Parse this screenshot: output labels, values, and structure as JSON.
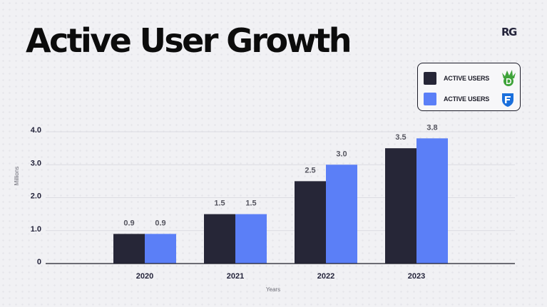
{
  "header": {
    "title": "Active User Growth",
    "brand": "RG"
  },
  "legend": [
    {
      "label": "ACTIVE USERS",
      "color": "#262637",
      "logo": "draftkings-crown-logo"
    },
    {
      "label": "ACTIVE USERS",
      "color": "#5b7ff7",
      "logo": "fanduel-shield-logo"
    }
  ],
  "chart_data": {
    "type": "bar",
    "title": "Active User Growth",
    "xlabel": "Years",
    "ylabel": "Millions",
    "ylim": [
      0,
      4.0
    ],
    "yticks": [
      0,
      1.0,
      2.0,
      3.0,
      4.0
    ],
    "ytick_labels": [
      "0",
      "1.0",
      "2.0",
      "3.0",
      "4.0"
    ],
    "grid": true,
    "legend_position": "top-right",
    "categories": [
      "2020",
      "2021",
      "2022",
      "2023"
    ],
    "series": [
      {
        "name": "ACTIVE USERS (DraftKings)",
        "color": "#262637",
        "values": [
          0.9,
          1.5,
          2.5,
          3.5
        ],
        "labels": [
          "0.9",
          "1.5",
          "2.5",
          "3.5"
        ]
      },
      {
        "name": "ACTIVE USERS (FanDuel)",
        "color": "#5b7ff7",
        "values": [
          0.9,
          1.5,
          3.0,
          3.8
        ],
        "labels": [
          "0.9",
          "1.5",
          "3.0",
          "3.8"
        ]
      }
    ]
  }
}
